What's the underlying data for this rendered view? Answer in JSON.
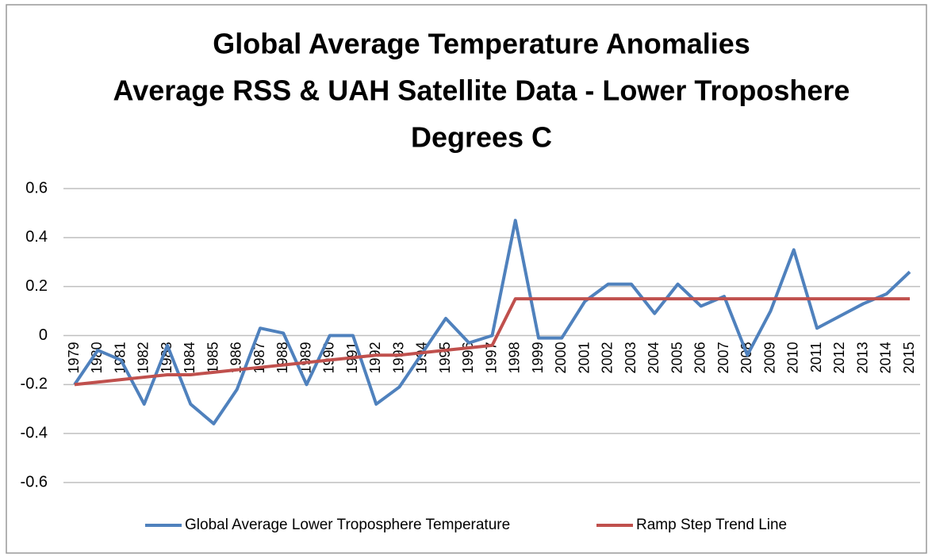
{
  "chart_data": {
    "type": "line",
    "title": [
      "Global Average Temperature Anomalies",
      "Average RSS & UAH Satellite Data - Lower Troposhere",
      "Degrees C"
    ],
    "categories": [
      "1979",
      "1980",
      "1981",
      "1982",
      "1983",
      "1984",
      "1985",
      "1986",
      "1987",
      "1988",
      "1989",
      "1990",
      "1991",
      "1992",
      "1993",
      "1994",
      "1995",
      "1996",
      "1997",
      "1998",
      "1999",
      "2000",
      "2001",
      "2002",
      "2003",
      "2004",
      "2005",
      "2006",
      "2007",
      "2008",
      "2009",
      "2010",
      "2011",
      "2012",
      "2013",
      "2014",
      "2015"
    ],
    "series": [
      {
        "name": "Global Average Lower Troposphere Temperature",
        "color": "#4f81bd",
        "values": [
          -0.2,
          -0.06,
          -0.1,
          -0.28,
          -0.04,
          -0.28,
          -0.36,
          -0.22,
          0.03,
          0.01,
          -0.2,
          0.0,
          0.0,
          -0.28,
          -0.21,
          -0.07,
          0.07,
          -0.03,
          0.0,
          0.47,
          -0.01,
          -0.01,
          0.14,
          0.21,
          0.21,
          0.09,
          0.21,
          0.12,
          0.16,
          -0.08,
          0.1,
          0.35,
          0.03,
          0.08,
          0.13,
          0.17,
          0.26
        ]
      },
      {
        "name": "Ramp Step Trend Line",
        "color": "#c0504d",
        "values": [
          -0.2,
          -0.19,
          -0.18,
          -0.17,
          -0.16,
          -0.16,
          -0.15,
          -0.14,
          -0.13,
          -0.12,
          -0.11,
          -0.1,
          -0.09,
          -0.08,
          -0.08,
          -0.07,
          -0.06,
          -0.05,
          -0.04,
          0.15,
          0.15,
          0.15,
          0.15,
          0.15,
          0.15,
          0.15,
          0.15,
          0.15,
          0.15,
          0.15,
          0.15,
          0.15,
          0.15,
          0.15,
          0.15,
          0.15,
          0.15
        ]
      }
    ],
    "ylim": [
      -0.6,
      0.6
    ],
    "yticks": [
      -0.6,
      -0.4,
      -0.2,
      0,
      0.2,
      0.4,
      0.6
    ],
    "grid": true,
    "legend": "bottom"
  }
}
